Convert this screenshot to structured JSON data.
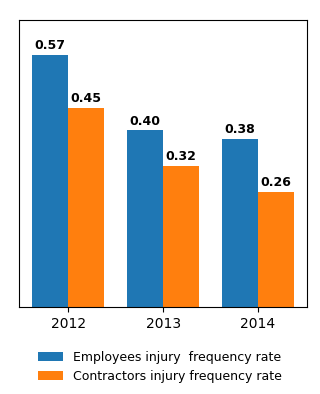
{
  "chart_data": {
    "type": "bar",
    "categories": [
      "2012",
      "2013",
      "2014"
    ],
    "series": [
      {
        "name": "Employees injury  frequency rate",
        "values": [
          0.57,
          0.4,
          0.38
        ],
        "value_labels": [
          "0.57",
          "0.40",
          "0.38"
        ]
      },
      {
        "name": "Contractors injury frequency rate",
        "values": [
          0.45,
          0.32,
          0.26
        ],
        "value_labels": [
          "0.45",
          "0.32",
          "0.26"
        ]
      }
    ],
    "ylim": [
      0,
      0.65
    ],
    "tick_labels": "x",
    "data_labels": true,
    "legend": "lower center"
  }
}
